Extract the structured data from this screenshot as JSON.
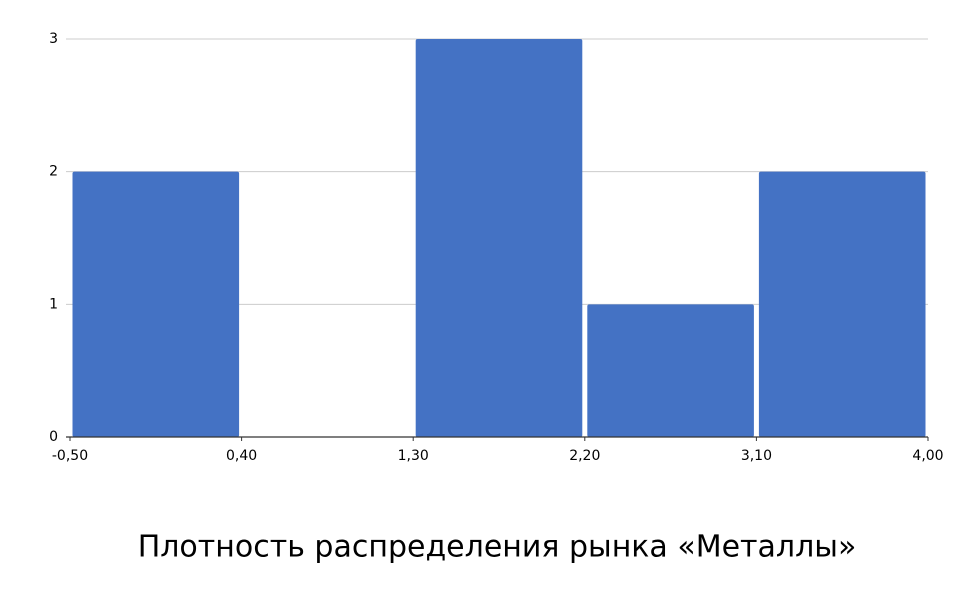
{
  "chart_data": {
    "type": "histogram",
    "title": "Плотность распределения рынка «Металлы»",
    "bins": [
      -0.5,
      0.4,
      1.3,
      2.2,
      3.1,
      4.0
    ],
    "values": [
      2,
      0,
      3,
      1,
      2
    ],
    "color": "#4472c4",
    "xlim": [
      -0.5,
      4.0
    ],
    "xticks": [
      {
        "value": -0.5,
        "label": "-0,50"
      },
      {
        "value": 0.4,
        "label": "0,40"
      },
      {
        "value": 1.3,
        "label": "1,30"
      },
      {
        "value": 2.2,
        "label": "2,20"
      },
      {
        "value": 3.1,
        "label": "3,10"
      },
      {
        "value": 4.0,
        "label": "4,00"
      }
    ],
    "ylim": [
      0,
      3
    ],
    "yticks": [
      0,
      1,
      2,
      3
    ],
    "grid": true
  }
}
